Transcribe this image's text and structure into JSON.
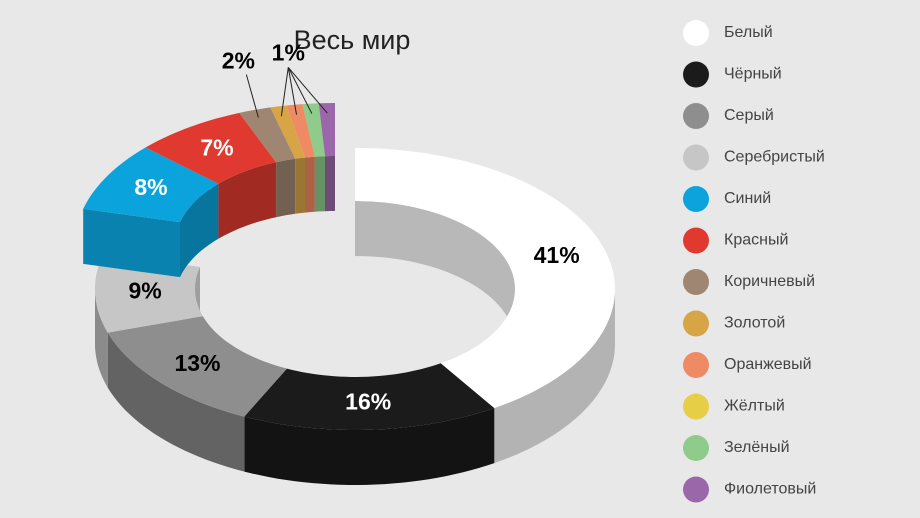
{
  "chart_data": {
    "type": "donut3d",
    "title": "Весь мир",
    "categories": [
      "Белый",
      "Чёрный",
      "Серый",
      "Серебристый",
      "Синий",
      "Красный",
      "Коричневый",
      "Золотой",
      "Оранжевый",
      "Жёлтый",
      "Зелёный",
      "Фиолетовый"
    ],
    "values": [
      41,
      16,
      13,
      9,
      8,
      7,
      2,
      1,
      1,
      0,
      1,
      1
    ],
    "value_labels": [
      "41%",
      "16%",
      "13%",
      "9%",
      "8%",
      "7%",
      "2%",
      "1%",
      null,
      null,
      null,
      null
    ],
    "colors": [
      "#ffffff",
      "#1b1b1b",
      "#8e8e8e",
      "#c6c6c6",
      "#0ba3db",
      "#e03a30",
      "#9e8672",
      "#d7a446",
      "#ee8a64",
      "#e6cf46",
      "#8fcb8a",
      "#9a68a8"
    ],
    "exploded": [
      4,
      5,
      6,
      7,
      8,
      9,
      10,
      11
    ],
    "legend": "right"
  }
}
